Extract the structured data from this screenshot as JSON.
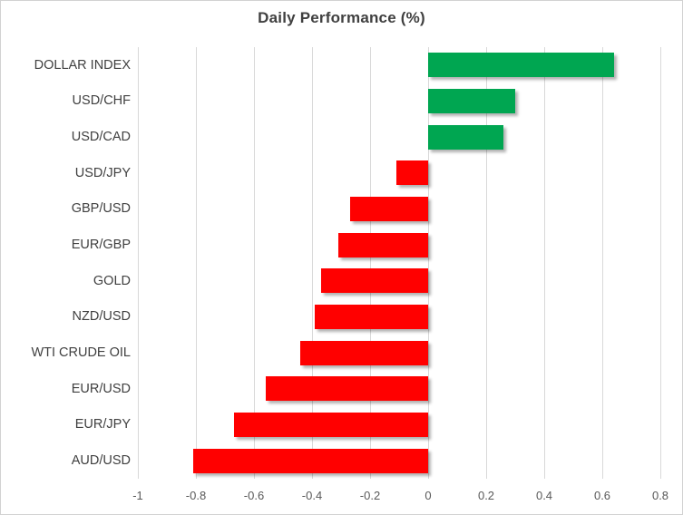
{
  "chart_data": {
    "type": "bar",
    "orientation": "horizontal",
    "title": "Daily Performance (%)",
    "categories": [
      "DOLLAR INDEX",
      "USD/CHF",
      "USD/CAD",
      "USD/JPY",
      "GBP/USD",
      "EUR/GBP",
      "GOLD",
      "NZD/USD",
      "WTI CRUDE OIL",
      "EUR/USD",
      "EUR/JPY",
      "AUD/USD"
    ],
    "values": [
      0.64,
      0.3,
      0.26,
      -0.11,
      -0.27,
      -0.31,
      -0.37,
      -0.39,
      -0.44,
      -0.56,
      -0.67,
      -0.81
    ],
    "xlim": [
      -1,
      0.8
    ],
    "grid": true,
    "legend": "none",
    "x_ticks": [
      {
        "value": -1,
        "label": "-1"
      },
      {
        "value": -0.8,
        "label": "-0.8"
      },
      {
        "value": -0.6,
        "label": "-0.6"
      },
      {
        "value": -0.4,
        "label": "-0.4"
      },
      {
        "value": -0.2,
        "label": "-0.2"
      },
      {
        "value": 0,
        "label": "0"
      },
      {
        "value": 0.2,
        "label": "0.2"
      },
      {
        "value": 0.4,
        "label": "0.4"
      },
      {
        "value": 0.6,
        "label": "0.6"
      },
      {
        "value": 0.8,
        "label": "0.8"
      }
    ],
    "colors": {
      "positive": "#00A651",
      "negative": "#FF0000"
    }
  }
}
